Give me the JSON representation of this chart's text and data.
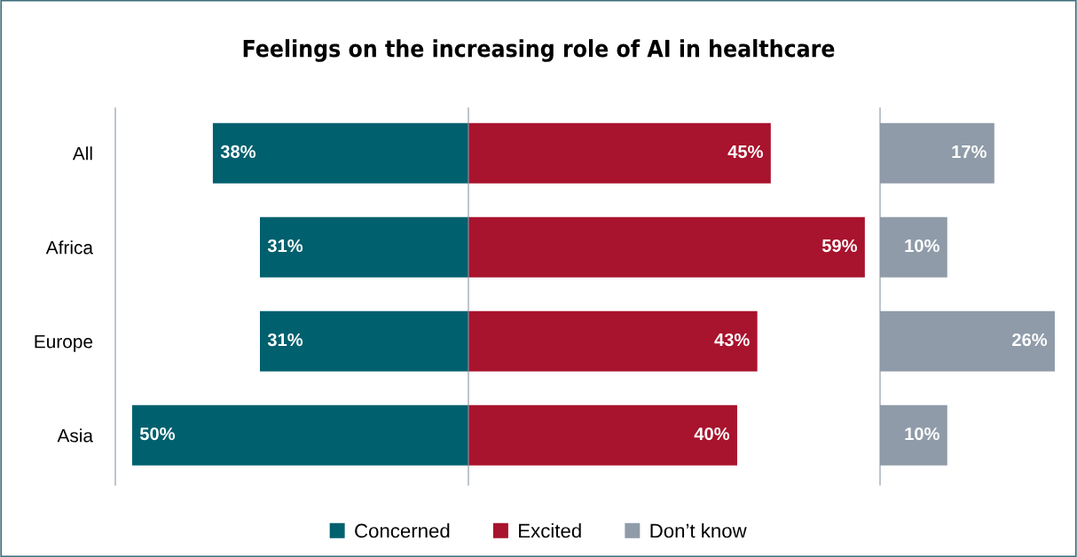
{
  "chart_data": [
    {
      "type": "bar",
      "orientation": "horizontal",
      "title": "Feelings on the increasing role of AI in healthcare",
      "categories": [
        "All",
        "Africa",
        "Europe",
        "Asia"
      ],
      "xlim": [
        52.5,
        0
      ],
      "tick_labels": "y",
      "legend": "bottom",
      "series": [
        {
          "name": "Concerned",
          "color": "#00606e",
          "values": [
            38,
            31,
            31,
            50
          ],
          "value_labels": [
            "38%",
            "31%",
            "31%",
            "50%"
          ]
        }
      ]
    },
    {
      "type": "bar",
      "orientation": "horizontal",
      "categories": [
        null,
        null,
        null,
        null
      ],
      "xlim": [
        0,
        61
      ],
      "tick_labels": false,
      "legend": "bottom",
      "series": [
        {
          "name": "Excited",
          "color": "#a8132d",
          "values": [
            45,
            59,
            43,
            40
          ],
          "value_labels": [
            "45%",
            "59%",
            "43%",
            "40%"
          ]
        }
      ]
    },
    {
      "type": "bar",
      "orientation": "horizontal",
      "categories": [
        null,
        null,
        null,
        null
      ],
      "xlim": [
        0,
        29.3
      ],
      "tick_labels": false,
      "legend": "bottom",
      "series": [
        {
          "name": "Don’t know",
          "color": "#8f9ba8",
          "values": [
            17,
            10,
            26,
            10
          ],
          "value_labels": [
            "17%",
            "10%",
            "26%",
            "10%"
          ]
        }
      ]
    }
  ]
}
